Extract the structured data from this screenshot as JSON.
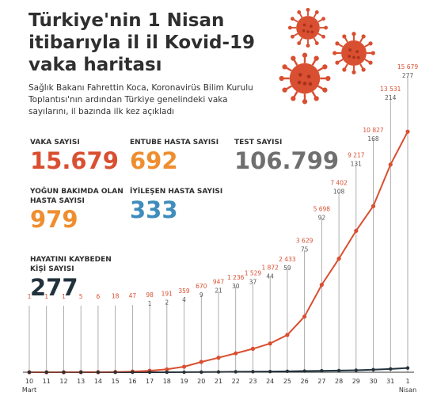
{
  "title": "Türkiye'nin 1 Nisan itibarıyla il il Kovid-19 vaka haritası",
  "subtitle": "Sağlık Bakanı Fahrettin Koca, Koronavirüs Bilim Kurulu Toplantısı'nın ardından Türkiye genelindeki vaka sayılarını, il bazında ilk kez açıkladı",
  "stats": {
    "vaka": {
      "label": "VAKA SAYISI",
      "value": "15.679"
    },
    "entube": {
      "label": "ENTUBE HASTA SAYISI",
      "value": "692"
    },
    "test": {
      "label": "TEST SAYISI",
      "value": "106.799"
    },
    "yogun": {
      "label": "YOĞUN BAKIMDA OLAN HASTA SAYISI",
      "value": "979"
    },
    "iyilesen": {
      "label": "İYİLEŞEN HASTA SAYISI",
      "value": "333"
    },
    "olum": {
      "label": "HAYATINI KAYBEDEN KİŞİ SAYISI",
      "value": "277"
    }
  },
  "colors": {
    "cases": "#d94f31",
    "deaths": "#22323d",
    "gridline": "#9a9a9a",
    "virus": "#d94f31"
  },
  "icons": [
    "virus-icon",
    "virus-icon",
    "virus-icon"
  ],
  "chart_data": {
    "type": "line",
    "title": "",
    "xlabel": "",
    "ylabel": "",
    "categories": [
      "10",
      "11",
      "12",
      "13",
      "14",
      "15",
      "16",
      "17",
      "18",
      "19",
      "20",
      "21",
      "22",
      "23",
      "24",
      "25",
      "26",
      "27",
      "28",
      "29",
      "30",
      "31",
      "1"
    ],
    "month_labels": {
      "start": "Mart",
      "end": "Nisan"
    },
    "ylim": [
      0,
      16000
    ],
    "grid": "vertical",
    "series": [
      {
        "key": "cases",
        "values": [
          1,
          1,
          1,
          5,
          6,
          18,
          47,
          98,
          191,
          359,
          670,
          947,
          1236,
          1529,
          1872,
          2433,
          3629,
          5698,
          7402,
          9217,
          10827,
          13531,
          15679
        ],
        "labels": [
          "1",
          "1",
          "1",
          "5",
          "6",
          "18",
          "47",
          "98",
          "191",
          "359",
          "670",
          "947",
          "1 236",
          "1 529",
          "1 872",
          "2 433",
          "3 629",
          "5 698",
          "7 402",
          "9 217",
          "10 827",
          "13 531",
          "15 679"
        ]
      },
      {
        "key": "deaths",
        "values": [
          0,
          0,
          0,
          0,
          0,
          0,
          0,
          1,
          2,
          4,
          9,
          21,
          30,
          37,
          44,
          59,
          75,
          92,
          108,
          131,
          168,
          214,
          277
        ],
        "labels": [
          "",
          "",
          "",
          "",
          "",
          "",
          "",
          "1",
          "2",
          "4",
          "9",
          "21",
          "30",
          "37",
          "44",
          "59",
          "75",
          "92",
          "108",
          "131",
          "168",
          "214",
          "277"
        ]
      }
    ]
  }
}
